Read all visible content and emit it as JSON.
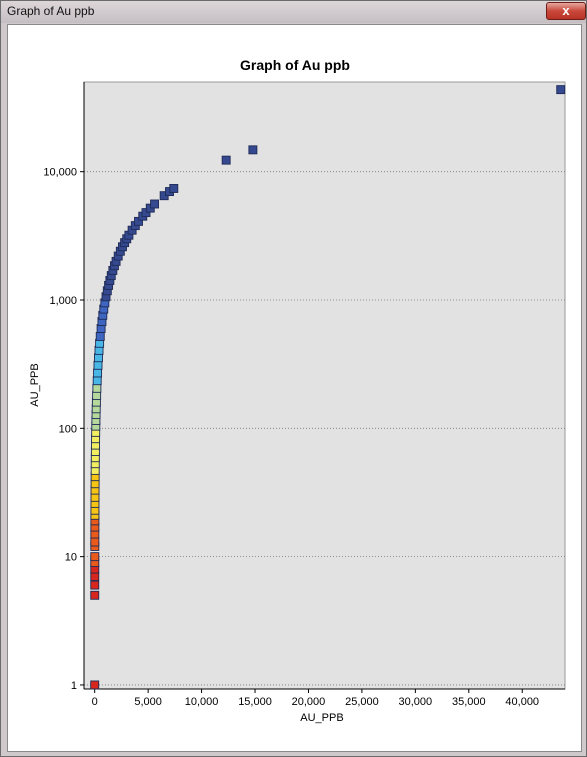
{
  "window": {
    "title": "Graph of Au ppb",
    "close_glyph": "x"
  },
  "colors": {
    "plot_background": "#e2e2e2",
    "gridline": "#777777",
    "marker_outline": "#1f2a55"
  },
  "chart_data": {
    "type": "scatter",
    "title": "Graph of Au ppb",
    "xlabel": "AU_PPB",
    "ylabel": "AU_PPB",
    "xlim": [
      -1000,
      44000
    ],
    "ylim": [
      0.93,
      50000
    ],
    "y_scale": "log",
    "grid": "horizontal dotted",
    "legend": "none",
    "x_ticks": [
      0,
      5000,
      10000,
      15000,
      20000,
      25000,
      30000,
      35000,
      40000
    ],
    "x_tick_labels": [
      "0",
      "5,000",
      "10,000",
      "15,000",
      "20,000",
      "25,000",
      "30,000",
      "35,000",
      "40,000"
    ],
    "y_ticks": [
      1,
      10,
      100,
      1000,
      10000
    ],
    "y_tick_labels": [
      "1",
      "10",
      "100",
      "1,000",
      "10,000"
    ],
    "color_stops": [
      {
        "value": 1,
        "color": "#d7261e"
      },
      {
        "value": 9,
        "color": "#ea5a1a"
      },
      {
        "value": 20,
        "color": "#f5c414"
      },
      {
        "value": 45,
        "color": "#f2ee60"
      },
      {
        "value": 100,
        "color": "#b5d89b"
      },
      {
        "value": 220,
        "color": "#48b7e6"
      },
      {
        "value": 500,
        "color": "#3e65c0"
      },
      {
        "value": 1000,
        "color": "#34498f"
      }
    ],
    "points": [
      [
        1,
        1
      ],
      [
        5,
        5
      ],
      [
        6,
        6
      ],
      [
        7,
        7
      ],
      [
        8,
        8
      ],
      [
        9,
        9
      ],
      [
        10,
        10
      ],
      [
        12,
        12
      ],
      [
        13,
        13
      ],
      [
        15,
        15
      ],
      [
        17,
        17
      ],
      [
        19,
        19
      ],
      [
        21,
        21
      ],
      [
        23,
        23
      ],
      [
        26,
        26
      ],
      [
        29,
        29
      ],
      [
        33,
        33
      ],
      [
        37,
        37
      ],
      [
        42,
        42
      ],
      [
        47,
        47
      ],
      [
        53,
        53
      ],
      [
        59,
        59
      ],
      [
        66,
        66
      ],
      [
        74,
        74
      ],
      [
        83,
        83
      ],
      [
        93,
        93
      ],
      [
        104,
        104
      ],
      [
        115,
        115
      ],
      [
        128,
        128
      ],
      [
        142,
        142
      ],
      [
        160,
        160
      ],
      [
        180,
        180
      ],
      [
        205,
        205
      ],
      [
        235,
        235
      ],
      [
        270,
        270
      ],
      [
        310,
        310
      ],
      [
        355,
        355
      ],
      [
        405,
        405
      ],
      [
        460,
        460
      ],
      [
        520,
        520
      ],
      [
        600,
        600
      ],
      [
        680,
        680
      ],
      [
        760,
        760
      ],
      [
        850,
        850
      ],
      [
        950,
        950
      ],
      [
        1060,
        1060
      ],
      [
        1180,
        1180
      ],
      [
        1300,
        1300
      ],
      [
        1420,
        1420
      ],
      [
        1550,
        1550
      ],
      [
        1700,
        1700
      ],
      [
        1850,
        1850
      ],
      [
        2000,
        2000
      ],
      [
        2200,
        2200
      ],
      [
        2400,
        2400
      ],
      [
        2600,
        2600
      ],
      [
        2800,
        2800
      ],
      [
        3000,
        3000
      ],
      [
        3200,
        3200
      ],
      [
        3500,
        3500
      ],
      [
        3800,
        3800
      ],
      [
        4100,
        4100
      ],
      [
        4500,
        4500
      ],
      [
        4800,
        4800
      ],
      [
        5200,
        5200
      ],
      [
        5600,
        5600
      ],
      [
        6500,
        6500
      ],
      [
        7000,
        7000
      ],
      [
        7400,
        7400
      ],
      [
        12300,
        12300
      ],
      [
        14800,
        14800
      ],
      [
        43600,
        43600
      ]
    ]
  }
}
